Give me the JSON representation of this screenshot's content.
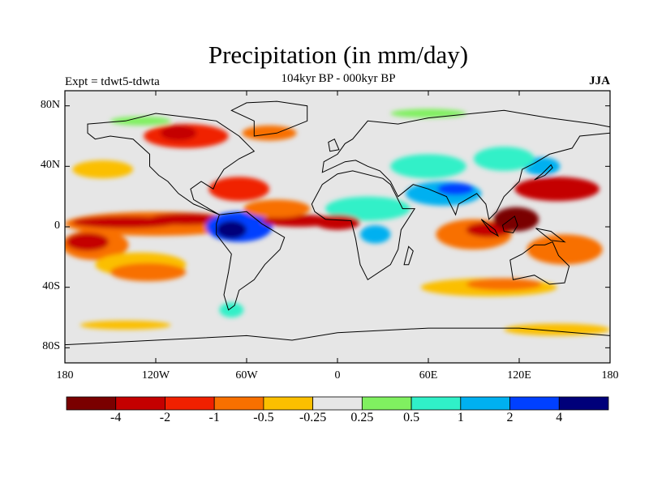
{
  "header": {
    "title": "Precipitation (in mm/day)",
    "subtitle": "104kyr BP - 000kyr BP",
    "left_string": "Expt = tdwt5-tdwta",
    "right_string": "JJA"
  },
  "axes": {
    "y_ticks": [
      {
        "lat": 80,
        "label": "80N"
      },
      {
        "lat": 40,
        "label": "40N"
      },
      {
        "lat": 0,
        "label": "0"
      },
      {
        "lat": -40,
        "label": "40S"
      },
      {
        "lat": -80,
        "label": "80S"
      }
    ],
    "x_ticks": [
      {
        "lon": -180,
        "label": "180"
      },
      {
        "lon": -120,
        "label": "120W"
      },
      {
        "lon": -60,
        "label": "60W"
      },
      {
        "lon": 0,
        "label": "0"
      },
      {
        "lon": 60,
        "label": "60E"
      },
      {
        "lon": 120,
        "label": "120E"
      },
      {
        "lon": 180,
        "label": "180"
      }
    ]
  },
  "colorbar": {
    "colors": [
      "#7a0000",
      "#c40000",
      "#f02000",
      "#f87000",
      "#fbbf00",
      "#e6e6e6",
      "#80f060",
      "#30f0c8",
      "#00b0f0",
      "#0040ff",
      "#00007a"
    ],
    "labels": [
      "-4",
      "-2",
      "-1",
      "-0.5",
      "-0.25",
      "0.25",
      "0.5",
      "1",
      "2",
      "4"
    ]
  },
  "anomaly_regions": [
    {
      "name": "tropical-pacific-band",
      "color": "#f87000",
      "cx": -120,
      "cy": 2,
      "rx": 60,
      "ry": 8
    },
    {
      "name": "itcz-central-pacific",
      "color": "#c40000",
      "cx": -140,
      "cy": 3,
      "rx": 35,
      "ry": 4
    },
    {
      "name": "itcz-east-pacific",
      "color": "#c40000",
      "cx": -100,
      "cy": 5,
      "rx": 25,
      "ry": 4
    },
    {
      "name": "south-pacific-west",
      "color": "#f87000",
      "cx": -160,
      "cy": -12,
      "rx": 22,
      "ry": 10
    },
    {
      "name": "south-pacific-dark",
      "color": "#c40000",
      "cx": -165,
      "cy": -10,
      "rx": 14,
      "ry": 6
    },
    {
      "name": "south-pacific-mid",
      "color": "#fbbf00",
      "cx": -130,
      "cy": -25,
      "rx": 30,
      "ry": 8
    },
    {
      "name": "south-pacific-diag",
      "color": "#f87000",
      "cx": -125,
      "cy": -30,
      "rx": 25,
      "ry": 6
    },
    {
      "name": "amazon-wet",
      "color": "#0040ff",
      "cx": -65,
      "cy": 0,
      "rx": 22,
      "ry": 10
    },
    {
      "name": "amazon-core",
      "color": "#00007a",
      "cx": -70,
      "cy": -2,
      "rx": 10,
      "ry": 6
    },
    {
      "name": "caribbean-dry",
      "color": "#f02000",
      "cx": -65,
      "cy": 25,
      "rx": 20,
      "ry": 8
    },
    {
      "name": "atlantic-itcz",
      "color": "#c40000",
      "cx": -25,
      "cy": 4,
      "rx": 25,
      "ry": 4
    },
    {
      "name": "atlantic-orange",
      "color": "#f87000",
      "cx": -40,
      "cy": 12,
      "rx": 22,
      "ry": 6
    },
    {
      "name": "north-america-red",
      "color": "#f02000",
      "cx": -100,
      "cy": 60,
      "rx": 28,
      "ry": 8
    },
    {
      "name": "north-america-dark",
      "color": "#c40000",
      "cx": -105,
      "cy": 62,
      "rx": 12,
      "ry": 5
    },
    {
      "name": "greenland-orange",
      "color": "#f87000",
      "cx": -45,
      "cy": 62,
      "rx": 18,
      "ry": 5
    },
    {
      "name": "east-pacific-north",
      "color": "#fbbf00",
      "cx": -155,
      "cy": 38,
      "rx": 20,
      "ry": 6
    },
    {
      "name": "africa-sahel-wet",
      "color": "#0040ff",
      "cx": 20,
      "cy": 13,
      "rx": 20,
      "ry": 5
    },
    {
      "name": "africa-wet-edge",
      "color": "#30f0c8",
      "cx": 20,
      "cy": 12,
      "rx": 28,
      "ry": 8
    },
    {
      "name": "gulf-guinea-dry",
      "color": "#c40000",
      "cx": 0,
      "cy": 3,
      "rx": 15,
      "ry": 5
    },
    {
      "name": "south-africa-blue",
      "color": "#00b0f0",
      "cx": 25,
      "cy": -5,
      "rx": 10,
      "ry": 6
    },
    {
      "name": "arabia-wet",
      "color": "#00b0f0",
      "cx": 70,
      "cy": 22,
      "rx": 25,
      "ry": 8
    },
    {
      "name": "india-dark-blue",
      "color": "#0040ff",
      "cx": 78,
      "cy": 25,
      "rx": 12,
      "ry": 4
    },
    {
      "name": "central-asia-cyan",
      "color": "#30f0c8",
      "cx": 60,
      "cy": 40,
      "rx": 25,
      "ry": 8
    },
    {
      "name": "indian-ocean-dry",
      "color": "#f87000",
      "cx": 90,
      "cy": -5,
      "rx": 25,
      "ry": 10
    },
    {
      "name": "indian-ocean-red",
      "color": "#c40000",
      "cx": 100,
      "cy": -2,
      "rx": 15,
      "ry": 5
    },
    {
      "name": "maritime-continent",
      "color": "#7a0000",
      "cx": 118,
      "cy": 5,
      "rx": 15,
      "ry": 8
    },
    {
      "name": "west-pacific-red",
      "color": "#c40000",
      "cx": 145,
      "cy": 25,
      "rx": 28,
      "ry": 8
    },
    {
      "name": "west-pacific-orange",
      "color": "#f87000",
      "cx": 150,
      "cy": -15,
      "rx": 25,
      "ry": 10
    },
    {
      "name": "east-asia-blue",
      "color": "#00b0f0",
      "cx": 135,
      "cy": 40,
      "rx": 12,
      "ry": 6
    },
    {
      "name": "east-asia-cyan",
      "color": "#30f0c8",
      "cx": 110,
      "cy": 45,
      "rx": 20,
      "ry": 8
    },
    {
      "name": "southern-ocean-orange",
      "color": "#fbbf00",
      "cx": 100,
      "cy": -40,
      "rx": 45,
      "ry": 6
    },
    {
      "name": "southern-ocean-red",
      "color": "#f87000",
      "cx": 110,
      "cy": -38,
      "rx": 25,
      "ry": 4
    },
    {
      "name": "southern-ocean-south",
      "color": "#fbbf00",
      "cx": 145,
      "cy": -68,
      "rx": 35,
      "ry": 4
    },
    {
      "name": "south-pacific-south",
      "color": "#fbbf00",
      "cx": -140,
      "cy": -65,
      "rx": 30,
      "ry": 3
    },
    {
      "name": "patagonia-cyan",
      "color": "#30f0c8",
      "cx": -70,
      "cy": -55,
      "rx": 8,
      "ry": 5
    },
    {
      "name": "siberia-green",
      "color": "#80f060",
      "cx": 60,
      "cy": 75,
      "rx": 25,
      "ry": 3
    },
    {
      "name": "arctic-green",
      "color": "#80f060",
      "cx": -130,
      "cy": 70,
      "rx": 20,
      "ry": 3
    }
  ],
  "continents": [
    {
      "name": "north-america",
      "points": [
        [
          -165,
          68
        ],
        [
          -140,
          70
        ],
        [
          -120,
          75
        ],
        [
          -95,
          72
        ],
        [
          -80,
          70
        ],
        [
          -65,
          60
        ],
        [
          -55,
          50
        ],
        [
          -65,
          45
        ],
        [
          -75,
          38
        ],
        [
          -80,
          30
        ],
        [
          -82,
          25
        ],
        [
          -90,
          30
        ],
        [
          -97,
          25
        ],
        [
          -95,
          18
        ],
        [
          -85,
          12
        ],
        [
          -78,
          8
        ],
        [
          -95,
          15
        ],
        [
          -105,
          22
        ],
        [
          -112,
          30
        ],
        [
          -118,
          34
        ],
        [
          -124,
          40
        ],
        [
          -124,
          48
        ],
        [
          -135,
          58
        ],
        [
          -150,
          60
        ],
        [
          -160,
          58
        ],
        [
          -165,
          62
        ]
      ]
    },
    {
      "name": "greenland",
      "points": [
        [
          -55,
          60
        ],
        [
          -40,
          62
        ],
        [
          -20,
          70
        ],
        [
          -20,
          80
        ],
        [
          -40,
          83
        ],
        [
          -60,
          82
        ],
        [
          -70,
          77
        ],
        [
          -55,
          70
        ]
      ]
    },
    {
      "name": "south-america",
      "points": [
        [
          -78,
          8
        ],
        [
          -60,
          10
        ],
        [
          -50,
          2
        ],
        [
          -35,
          -7
        ],
        [
          -38,
          -15
        ],
        [
          -48,
          -25
        ],
        [
          -55,
          -35
        ],
        [
          -65,
          -42
        ],
        [
          -68,
          -52
        ],
        [
          -72,
          -55
        ],
        [
          -75,
          -45
        ],
        [
          -72,
          -30
        ],
        [
          -70,
          -18
        ],
        [
          -80,
          -5
        ],
        [
          -80,
          2
        ]
      ]
    },
    {
      "name": "africa",
      "points": [
        [
          -17,
          15
        ],
        [
          -10,
          28
        ],
        [
          0,
          35
        ],
        [
          10,
          37
        ],
        [
          30,
          32
        ],
        [
          35,
          28
        ],
        [
          43,
          12
        ],
        [
          51,
          12
        ],
        [
          42,
          -2
        ],
        [
          40,
          -15
        ],
        [
          35,
          -25
        ],
        [
          20,
          -35
        ],
        [
          15,
          -25
        ],
        [
          12,
          -8
        ],
        [
          9,
          4
        ],
        [
          -8,
          5
        ],
        [
          -15,
          10
        ]
      ]
    },
    {
      "name": "eurasia",
      "points": [
        [
          -10,
          36
        ],
        [
          -9,
          43
        ],
        [
          0,
          48
        ],
        [
          5,
          55
        ],
        [
          10,
          58
        ],
        [
          20,
          70
        ],
        [
          40,
          68
        ],
        [
          60,
          72
        ],
        [
          80,
          74
        ],
        [
          110,
          77
        ],
        [
          140,
          72
        ],
        [
          170,
          68
        ],
        [
          180,
          66
        ],
        [
          180,
          62
        ],
        [
          160,
          60
        ],
        [
          155,
          52
        ],
        [
          140,
          48
        ],
        [
          130,
          42
        ],
        [
          122,
          38
        ],
        [
          120,
          30
        ],
        [
          110,
          20
        ],
        [
          105,
          10
        ],
        [
          100,
          5
        ],
        [
          98,
          15
        ],
        [
          92,
          22
        ],
        [
          80,
          15
        ],
        [
          78,
          8
        ],
        [
          72,
          20
        ],
        [
          60,
          25
        ],
        [
          50,
          28
        ],
        [
          40,
          20
        ],
        [
          35,
          30
        ],
        [
          28,
          37
        ],
        [
          20,
          40
        ],
        [
          12,
          44
        ],
        [
          5,
          43
        ]
      ]
    },
    {
      "name": "australia",
      "points": [
        [
          114,
          -22
        ],
        [
          122,
          -18
        ],
        [
          130,
          -12
        ],
        [
          137,
          -12
        ],
        [
          142,
          -10
        ],
        [
          146,
          -19
        ],
        [
          153,
          -26
        ],
        [
          150,
          -37
        ],
        [
          140,
          -38
        ],
        [
          130,
          -32
        ],
        [
          116,
          -35
        ]
      ]
    },
    {
      "name": "antarctica",
      "points": [
        [
          -180,
          -78
        ],
        [
          -120,
          -75
        ],
        [
          -60,
          -72
        ],
        [
          -30,
          -75
        ],
        [
          0,
          -70
        ],
        [
          60,
          -67
        ],
        [
          120,
          -67
        ],
        [
          180,
          -72
        ],
        [
          180,
          -90
        ],
        [
          -180,
          -90
        ]
      ]
    },
    {
      "name": "borneo",
      "points": [
        [
          109,
          1
        ],
        [
          117,
          7
        ],
        [
          119,
          1
        ],
        [
          116,
          -4
        ],
        [
          110,
          -3
        ]
      ]
    },
    {
      "name": "sumatra",
      "points": [
        [
          95,
          5
        ],
        [
          104,
          -2
        ],
        [
          106,
          -6
        ],
        [
          101,
          -3
        ]
      ]
    },
    {
      "name": "new-guinea",
      "points": [
        [
          131,
          -1
        ],
        [
          141,
          -3
        ],
        [
          150,
          -10
        ],
        [
          141,
          -9
        ]
      ]
    },
    {
      "name": "japan",
      "points": [
        [
          130,
          31
        ],
        [
          135,
          35
        ],
        [
          141,
          41
        ],
        [
          142,
          39
        ],
        [
          137,
          34
        ]
      ]
    },
    {
      "name": "uk",
      "points": [
        [
          -5,
          50
        ],
        [
          1,
          51
        ],
        [
          -2,
          58
        ],
        [
          -6,
          56
        ]
      ]
    },
    {
      "name": "madagascar",
      "points": [
        [
          44,
          -25
        ],
        [
          47,
          -13
        ],
        [
          50,
          -16
        ],
        [
          47,
          -25
        ]
      ]
    }
  ]
}
